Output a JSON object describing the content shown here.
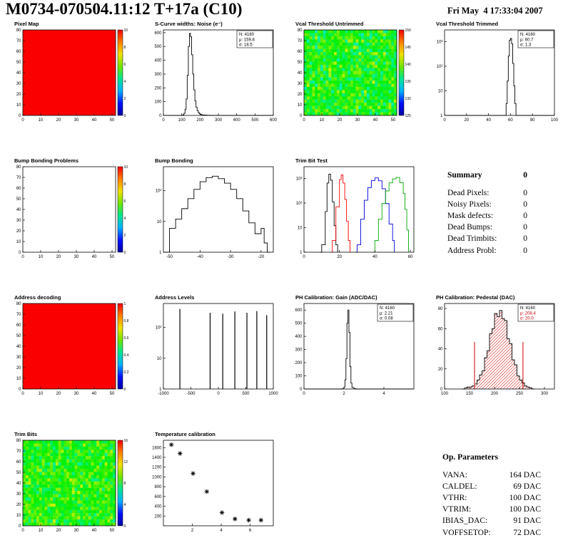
{
  "header": {
    "title": "M0734-070504.11:12 T+17a (C10)",
    "date": "Fri May  4 17:33:04 2007"
  },
  "summary": {
    "title": "Summary",
    "total": "0",
    "rows": [
      {
        "label": "Dead Pixels:",
        "value": "0"
      },
      {
        "label": "Noisy Pixels:",
        "value": "0"
      },
      {
        "label": "Mask defects:",
        "value": "0"
      },
      {
        "label": "Dead Bumps:",
        "value": "0"
      },
      {
        "label": "Dead Trimbits:",
        "value": "0"
      },
      {
        "label": "Address Probl:",
        "value": "0"
      }
    ]
  },
  "op_parameters": {
    "title": "Op. Parameters",
    "rows": [
      {
        "label": "VANA:",
        "value": "164 DAC"
      },
      {
        "label": "CALDEL:",
        "value": "69 DAC"
      },
      {
        "label": "VTHR:",
        "value": "100 DAC"
      },
      {
        "label": "VTRIM:",
        "value": "100 DAC"
      },
      {
        "label": "IBIAS_DAC:",
        "value": "91 DAC"
      },
      {
        "label": "VOFFSETOP:",
        "value": "72 DAC"
      }
    ]
  },
  "colors": {
    "heat_red": "#fa0000",
    "hist_line": "#000000",
    "accent_red": "#cc0000",
    "colorbar_palette": [
      "#0000a0",
      "#0010ff",
      "#00b0ff",
      "#00e690",
      "#6fe600",
      "#f0e000",
      "#ff8000",
      "#f00000"
    ]
  },
  "chart_data": [
    {
      "name": "pixel-map",
      "title": "Pixel Map",
      "type": "heatmap",
      "heat": "solid",
      "fill_color": "#fa0000",
      "x_range": [
        0,
        52
      ],
      "y_range": [
        0,
        80
      ],
      "x_ticks": [
        0,
        10,
        20,
        30,
        40,
        50
      ],
      "y_ticks": [
        0,
        10,
        20,
        30,
        40,
        50,
        60,
        70,
        80
      ],
      "colorbar": {
        "ticks": [
          "0",
          "2",
          "4",
          "6",
          "8",
          "10"
        ]
      }
    },
    {
      "name": "scurve-noise",
      "title": "S-Curve widths: Noise (e⁻)",
      "type": "hist",
      "x_range": [
        0,
        600
      ],
      "y_range": [
        0,
        620
      ],
      "x_ticks": [
        0,
        100,
        200,
        300,
        400,
        500,
        600
      ],
      "y_ticks": [
        0,
        100,
        200,
        300,
        400,
        500,
        600
      ],
      "stats": {
        "N": "4160",
        "mean": "159.8",
        "sigma": "18.5"
      },
      "points": [
        [
          0,
          0
        ],
        [
          100,
          0
        ],
        [
          106,
          5
        ],
        [
          112,
          15
        ],
        [
          118,
          45
        ],
        [
          124,
          120
        ],
        [
          130,
          290
        ],
        [
          136,
          500
        ],
        [
          142,
          595
        ],
        [
          148,
          570
        ],
        [
          154,
          440
        ],
        [
          160,
          300
        ],
        [
          166,
          185
        ],
        [
          172,
          105
        ],
        [
          178,
          60
        ],
        [
          184,
          35
        ],
        [
          190,
          20
        ],
        [
          196,
          12
        ],
        [
          202,
          8
        ],
        [
          208,
          5
        ],
        [
          214,
          3
        ],
        [
          226,
          2
        ],
        [
          238,
          1
        ],
        [
          260,
          0
        ],
        [
          600,
          0
        ]
      ]
    },
    {
      "name": "vcal-threshold-untrimmed",
      "title": "Vcal Threshold Untrimmed",
      "type": "heatmap",
      "heat": "noise",
      "noise": {
        "base": 0.5,
        "spread": 0.22,
        "seed": 42
      },
      "x_range": [
        0,
        52
      ],
      "y_range": [
        0,
        80
      ],
      "x_ticks": [
        0,
        10,
        20,
        30,
        40,
        50
      ],
      "y_ticks": [
        0,
        10,
        20,
        30,
        40,
        50,
        60,
        70,
        80
      ],
      "colorbar": {
        "ticks": [
          "125",
          "130",
          "135",
          "140",
          "145",
          "150"
        ]
      }
    },
    {
      "name": "vcal-threshold-trimmed",
      "title": "Vcal Threshold Trimmed",
      "type": "hist",
      "ylog": true,
      "x_range": [
        0,
        100
      ],
      "y_range": [
        1,
        3000
      ],
      "x_ticks": [
        0,
        20,
        40,
        60,
        80,
        100
      ],
      "y_ticks": [
        1,
        10,
        100,
        1000
      ],
      "y_tick_labels": [
        "1",
        "10",
        "10²",
        "10³"
      ],
      "stats": {
        "N": "4160",
        "mean": "60.7",
        "sigma": "1.3"
      },
      "points": [
        [
          0,
          0
        ],
        [
          54,
          0
        ],
        [
          55,
          1
        ],
        [
          56,
          3
        ],
        [
          57,
          25
        ],
        [
          58,
          260
        ],
        [
          59,
          1150
        ],
        [
          60,
          1350
        ],
        [
          61,
          820
        ],
        [
          62,
          130
        ],
        [
          63,
          16
        ],
        [
          64,
          3
        ],
        [
          65,
          1
        ],
        [
          66,
          0
        ],
        [
          100,
          0
        ]
      ]
    },
    {
      "name": "bump-bonding-problems",
      "title": "Bump Bonding Problems",
      "type": "heatmap",
      "heat": "empty",
      "x_range": [
        0,
        52
      ],
      "y_range": [
        0,
        80
      ],
      "x_ticks": [
        0,
        10,
        20,
        30,
        40,
        50
      ],
      "y_ticks": [
        0,
        10,
        20,
        30,
        40,
        50,
        60,
        70,
        80
      ],
      "colorbar": {
        "ticks": [
          "0",
          "2",
          "4",
          "6",
          "8",
          "10"
        ]
      }
    },
    {
      "name": "bump-bonding",
      "title": "Bump Bonding",
      "type": "hist",
      "ylog": true,
      "x_range": [
        -52,
        -16
      ],
      "y_range": [
        1,
        600
      ],
      "x_ticks": [
        -50,
        -40,
        -30,
        -20
      ],
      "y_ticks": [
        1,
        10,
        100
      ],
      "y_tick_labels": [
        "1",
        "10",
        "10²"
      ],
      "points": [
        [
          -52,
          0
        ],
        [
          -50,
          6
        ],
        [
          -48,
          12
        ],
        [
          -46,
          26
        ],
        [
          -44,
          55
        ],
        [
          -42,
          110
        ],
        [
          -40,
          195
        ],
        [
          -38,
          265
        ],
        [
          -36,
          295
        ],
        [
          -34,
          245
        ],
        [
          -32,
          175
        ],
        [
          -30,
          110
        ],
        [
          -28,
          55
        ],
        [
          -26,
          22
        ],
        [
          -24,
          9
        ],
        [
          -22,
          4
        ],
        [
          -20,
          6
        ],
        [
          -19,
          2
        ],
        [
          -18,
          1
        ],
        [
          -17,
          0
        ]
      ]
    },
    {
      "name": "trim-bit-test",
      "title": "Trim Bit Test",
      "type": "multihist",
      "ylog": true,
      "x_range": [
        0,
        62
      ],
      "y_range": [
        1,
        3000
      ],
      "x_ticks": [
        0,
        20,
        40,
        60
      ],
      "y_ticks": [
        1,
        10,
        100,
        1000
      ],
      "y_tick_labels": [
        "1",
        "10",
        "10²",
        "10³"
      ],
      "series": [
        {
          "color": "#000000",
          "points": [
            [
              9,
              0
            ],
            [
              10,
              2
            ],
            [
              12,
              45
            ],
            [
              13,
              650
            ],
            [
              14,
              1500
            ],
            [
              15,
              850
            ],
            [
              16,
              110
            ],
            [
              17,
              12
            ],
            [
              18,
              2
            ],
            [
              19,
              0
            ]
          ]
        },
        {
          "color": "#ff0000",
          "points": [
            [
              15,
              0
            ],
            [
              16,
              3
            ],
            [
              18,
              70
            ],
            [
              20,
              900
            ],
            [
              21,
              1400
            ],
            [
              22,
              650
            ],
            [
              23,
              140
            ],
            [
              24,
              18
            ],
            [
              25,
              3
            ],
            [
              26,
              0
            ]
          ]
        },
        {
          "color": "#0000dd",
          "points": [
            [
              29,
              0
            ],
            [
              30,
              2
            ],
            [
              32,
              22
            ],
            [
              34,
              130
            ],
            [
              36,
              420
            ],
            [
              38,
              820
            ],
            [
              40,
              1050
            ],
            [
              42,
              800
            ],
            [
              44,
              380
            ],
            [
              46,
              95
            ],
            [
              48,
              14
            ],
            [
              50,
              3
            ],
            [
              51,
              0
            ]
          ]
        },
        {
          "color": "#00aa00",
          "points": [
            [
              39,
              0
            ],
            [
              40,
              3
            ],
            [
              42,
              22
            ],
            [
              44,
              95
            ],
            [
              46,
              310
            ],
            [
              48,
              660
            ],
            [
              50,
              960
            ],
            [
              52,
              1100
            ],
            [
              54,
              680
            ],
            [
              56,
              240
            ],
            [
              57,
              55
            ],
            [
              58,
              8
            ],
            [
              59,
              0
            ]
          ]
        }
      ]
    },
    {
      "name": "address-decoding",
      "title": "Address decoding",
      "type": "heatmap",
      "heat": "solid",
      "fill_color": "#fa0000",
      "x_range": [
        0,
        52
      ],
      "y_range": [
        0,
        80
      ],
      "x_ticks": [
        0,
        10,
        20,
        30,
        40,
        50
      ],
      "y_ticks": [
        0,
        10,
        20,
        30,
        40,
        50,
        60,
        70,
        80
      ],
      "colorbar": {
        "ticks": [
          "0",
          "0.2",
          "0.4",
          "0.6",
          "0.8",
          "1"
        ]
      }
    },
    {
      "name": "address-levels",
      "title": "Address Levels",
      "type": "spikes",
      "ylog": true,
      "x_range": [
        -1000,
        1000
      ],
      "y_range": [
        1,
        600
      ],
      "x_ticks": [
        -1000,
        -500,
        0,
        500,
        1000
      ],
      "y_ticks": [
        1,
        10,
        100
      ],
      "y_tick_labels": [
        "1",
        "10",
        "10²"
      ],
      "spikes": [
        [
          -700,
          400
        ],
        [
          -150,
          300
        ],
        [
          80,
          280
        ],
        [
          300,
          330
        ],
        [
          520,
          300
        ],
        [
          700,
          340
        ],
        [
          880,
          250
        ]
      ]
    },
    {
      "name": "ph-calibration-gain",
      "title": "PH Calibration: Gain (ADC/DAC)",
      "type": "hist",
      "x_range": [
        0,
        5.5
      ],
      "y_range": [
        0,
        650
      ],
      "x_ticks": [
        0,
        2,
        4
      ],
      "y_ticks": [
        0,
        100,
        200,
        300,
        400,
        500,
        600
      ],
      "stats": {
        "N": "4160",
        "mean": "2.21",
        "sigma": "0.08"
      },
      "points": [
        [
          0,
          0
        ],
        [
          1.8,
          0
        ],
        [
          1.9,
          2
        ],
        [
          2.0,
          15
        ],
        [
          2.05,
          70
        ],
        [
          2.1,
          230
        ],
        [
          2.15,
          500
        ],
        [
          2.2,
          600
        ],
        [
          2.25,
          430
        ],
        [
          2.3,
          170
        ],
        [
          2.35,
          45
        ],
        [
          2.4,
          12
        ],
        [
          2.5,
          3
        ],
        [
          2.6,
          0
        ],
        [
          5.5,
          0
        ]
      ]
    },
    {
      "name": "ph-calibration-pedestal",
      "title": "PH Calibration: Pedestal (DAC)",
      "type": "hist",
      "fill": "hatch",
      "x_range": [
        100,
        320
      ],
      "y_range": [
        0,
        85
      ],
      "x_ticks": [
        100,
        150,
        200,
        250,
        300
      ],
      "y_ticks": [
        0,
        20,
        40,
        60,
        80
      ],
      "stats": {
        "N": "4160",
        "mean": "208.4",
        "sigma": "20.0",
        "accent": "#cc0000"
      },
      "fit_lines": [
        160,
        257
      ],
      "points": [
        [
          135,
          0
        ],
        [
          140,
          1
        ],
        [
          145,
          2
        ],
        [
          150,
          2
        ],
        [
          155,
          3
        ],
        [
          160,
          5
        ],
        [
          165,
          9
        ],
        [
          170,
          14
        ],
        [
          175,
          18
        ],
        [
          180,
          31
        ],
        [
          185,
          38
        ],
        [
          190,
          55
        ],
        [
          195,
          60
        ],
        [
          200,
          75
        ],
        [
          205,
          72
        ],
        [
          210,
          78
        ],
        [
          215,
          70
        ],
        [
          220,
          68
        ],
        [
          225,
          50
        ],
        [
          230,
          45
        ],
        [
          235,
          29
        ],
        [
          240,
          24
        ],
        [
          245,
          13
        ],
        [
          250,
          9
        ],
        [
          255,
          6
        ],
        [
          260,
          3
        ],
        [
          265,
          2
        ],
        [
          270,
          1
        ],
        [
          275,
          0
        ],
        [
          280,
          0
        ]
      ]
    },
    {
      "name": "trim-bits",
      "title": "Trim Bits",
      "type": "heatmap",
      "heat": "noise",
      "noise": {
        "base": 0.52,
        "spread": 0.2,
        "seed": 99
      },
      "x_range": [
        0,
        52
      ],
      "y_range": [
        0,
        80
      ],
      "x_ticks": [
        0,
        10,
        20,
        30,
        40,
        50
      ],
      "y_ticks": [
        0,
        10,
        20,
        30,
        40,
        50,
        60,
        70,
        80
      ],
      "colorbar": {
        "ticks": [
          "0",
          "4",
          "8",
          "12",
          "16"
        ]
      }
    },
    {
      "name": "temperature-calibration",
      "title": "Temperature calibration",
      "type": "scatter",
      "x_range": [
        0,
        7.6
      ],
      "y_range": [
        0,
        1750
      ],
      "x_ticks": [
        2,
        4,
        6
      ],
      "y_ticks": [
        200,
        400,
        600,
        800,
        1000,
        1200,
        1400,
        1600
      ],
      "points": [
        [
          0.55,
          1660
        ],
        [
          1.15,
          1480
        ],
        [
          2.05,
          1070
        ],
        [
          3.0,
          700
        ],
        [
          4.05,
          270
        ],
        [
          4.95,
          140
        ],
        [
          5.9,
          115
        ],
        [
          6.75,
          115
        ]
      ]
    }
  ]
}
